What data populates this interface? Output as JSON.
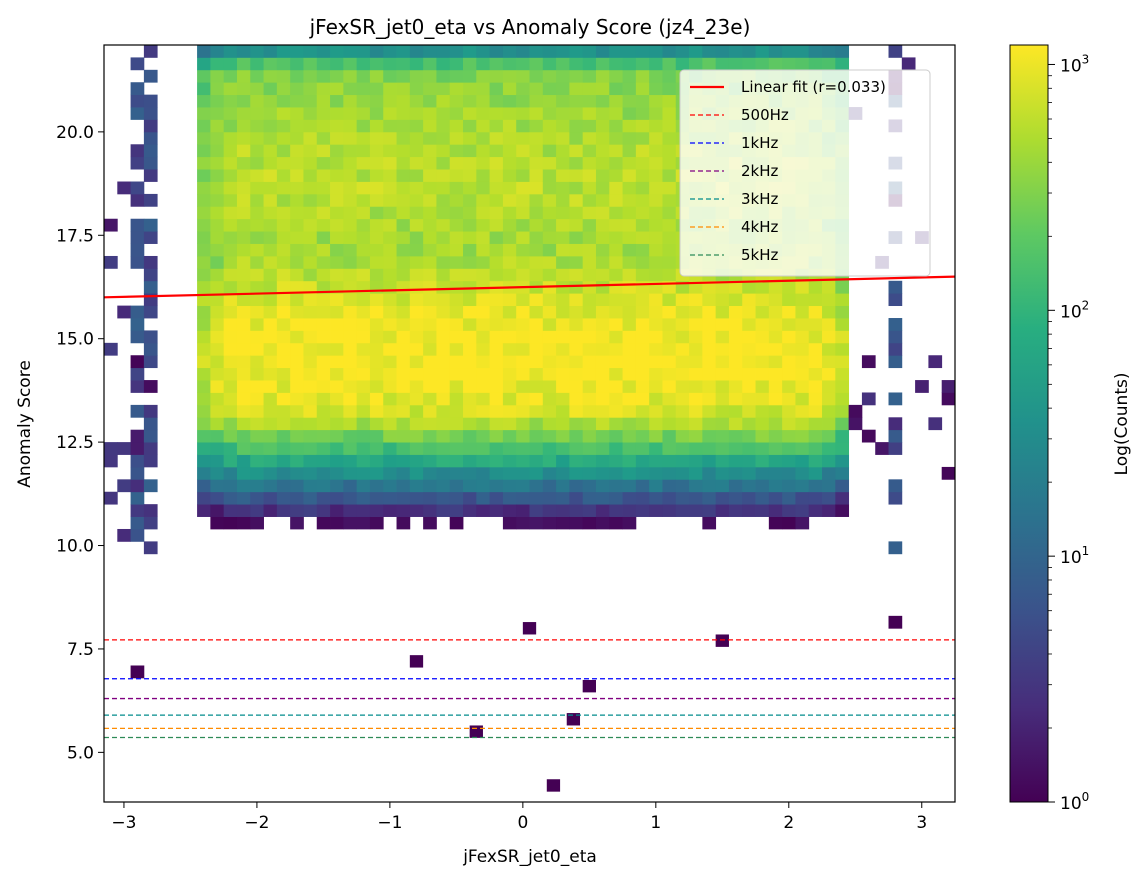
{
  "chart_data": {
    "type": "heatmap",
    "title": "jFexSR_jet0_eta vs Anomaly Score (jz4_23e)",
    "xlabel": "jFexSR_jet0_eta",
    "ylabel": "Anomaly Score",
    "colorbar_label": "Log(Counts)",
    "colormap": "viridis",
    "color_scale": "log",
    "clim": [
      1,
      1200
    ],
    "colorbar_ticks": [
      {
        "value": 1,
        "mantissa": "10",
        "exp": "0"
      },
      {
        "value": 10,
        "mantissa": "10",
        "exp": "1"
      },
      {
        "value": 100,
        "mantissa": "10",
        "exp": "2"
      },
      {
        "value": 1000,
        "mantissa": "10",
        "exp": "3"
      }
    ],
    "xlim": [
      -3.15,
      3.25
    ],
    "ylim": [
      3.8,
      22.1
    ],
    "x_ticks": [
      -3,
      -2,
      -1,
      0,
      1,
      2,
      3
    ],
    "x_tick_labels": [
      "−3",
      "−2",
      "−1",
      "0",
      "1",
      "2",
      "3"
    ],
    "y_ticks": [
      5.0,
      7.5,
      10.0,
      12.5,
      15.0,
      17.5,
      20.0
    ],
    "y_tick_labels": [
      "5.0",
      "7.5",
      "10.0",
      "12.5",
      "15.0",
      "17.5",
      "20.0"
    ],
    "grid": false,
    "legend_position": "top-right",
    "fit_line": {
      "label": "Linear fit (r=0.033)",
      "color": "#ff0000",
      "x": [
        -3.15,
        3.25
      ],
      "y": [
        16.0,
        16.5
      ]
    },
    "thresholds": [
      {
        "label": "500Hz",
        "value": 7.72,
        "color": "#ff0000"
      },
      {
        "label": "1kHz",
        "value": 6.78,
        "color": "#0000ff"
      },
      {
        "label": "2kHz",
        "value": 6.3,
        "color": "#800080"
      },
      {
        "label": "3kHz",
        "value": 5.9,
        "color": "#008b8b"
      },
      {
        "label": "4kHz",
        "value": 5.58,
        "color": "#ff8c00"
      },
      {
        "label": "5kHz",
        "value": 5.36,
        "color": "#2e8b57"
      }
    ],
    "bins": {
      "x_min": -3.15,
      "x_max": 3.25,
      "nx": 64,
      "y_min": 3.8,
      "y_max": 22.1,
      "ny": 61
    },
    "density_model": {
      "core_x_range": [
        -2.5,
        2.5
      ],
      "peak_count": 1100,
      "bands": [
        {
          "center": 14.6,
          "width": 1.4,
          "weight": 1.0
        },
        {
          "center": 18.6,
          "width": 1.0,
          "weight": 0.35
        },
        {
          "center": 20.5,
          "width": 1.2,
          "weight": 0.22
        }
      ],
      "tail_x_bins": [
        -2.85,
        2.8
      ],
      "sparse_low_scores": [
        4.2,
        5.5,
        5.8,
        6.6,
        7.2,
        7.7,
        8.0
      ]
    }
  }
}
